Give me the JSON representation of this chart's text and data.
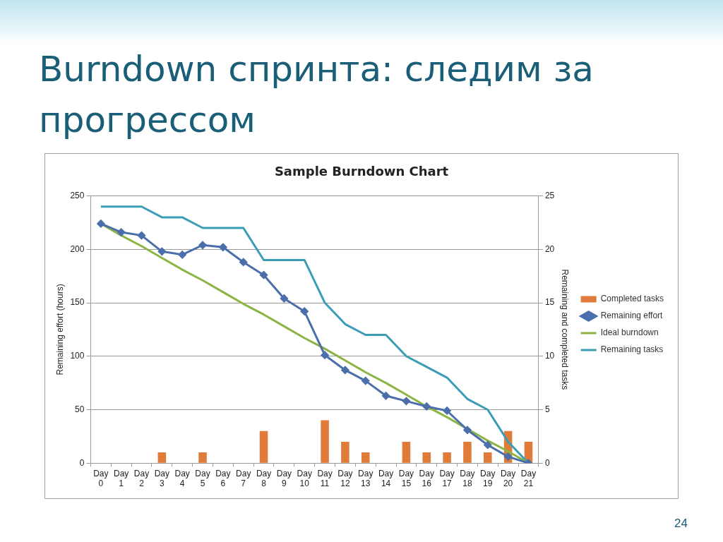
{
  "chart_data": {
    "type": "line",
    "title": "Sample Burndown Chart",
    "subtitle": "Burndown спринта: следим за прогрессом",
    "ylabel": "Remaining effort (hours)",
    "y2label": "Remaining and completed tasks",
    "categories": [
      "Day 0",
      "Day 1",
      "Day 2",
      "Day 3",
      "Day 4",
      "Day 5",
      "Day 6",
      "Day 7",
      "Day 8",
      "Day 9",
      "Day 10",
      "Day 11",
      "Day 12",
      "Day 13",
      "Day 14",
      "Day 15",
      "Day 16",
      "Day 17",
      "Day 18",
      "Day 19",
      "Day 20",
      "Day 21"
    ],
    "series": [
      {
        "name": "Completed tasks",
        "type": "bar",
        "axis": "y2",
        "color": "#e07b39",
        "values": [
          0,
          0,
          0,
          1,
          0,
          1,
          0,
          0,
          3,
          0,
          0,
          4,
          2,
          1,
          0,
          2,
          1,
          1,
          2,
          1,
          3,
          2
        ]
      },
      {
        "name": "Remaining effort",
        "marker": "diamond",
        "color": "#4a6fab",
        "values": [
          224,
          216,
          213,
          198,
          195,
          204,
          202,
          188,
          176,
          154,
          142,
          101,
          87,
          77,
          63,
          58,
          53,
          49,
          31,
          17,
          6,
          0
        ]
      },
      {
        "name": "Ideal burndown",
        "marker": "none",
        "color": "#8db443",
        "values": [
          224,
          213,
          203,
          192,
          181,
          171,
          160,
          149,
          139,
          128,
          117,
          107,
          96,
          85,
          75,
          64,
          53,
          43,
          32,
          21,
          11,
          0
        ]
      },
      {
        "name": "Remaining tasks",
        "marker": "none",
        "axis": "y2",
        "color": "#3b9db5",
        "values": [
          24,
          24,
          24,
          23,
          23,
          22,
          22,
          22,
          19,
          19,
          19,
          15,
          13,
          12,
          12,
          10,
          9,
          8,
          6,
          5,
          2,
          0
        ]
      }
    ],
    "ylim": [
      0,
      250
    ],
    "yticks": [
      0,
      50,
      100,
      150,
      200,
      250
    ],
    "y2lim": [
      0,
      25
    ],
    "y2ticks": [
      0,
      5,
      10,
      15,
      20,
      25
    ],
    "grid": "y",
    "legend": "right",
    "annotations": [
      "24"
    ]
  }
}
